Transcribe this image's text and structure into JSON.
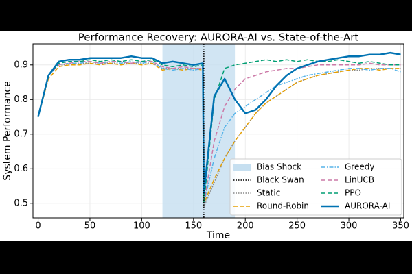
{
  "chart_data": {
    "type": "line",
    "title": "Performance Recovery: AURORA-AI vs. State-of-the-Art",
    "xlabel": "Time",
    "ylabel": "System Performance",
    "xlim": [
      -5,
      353
    ],
    "ylim": [
      0.458,
      0.961
    ],
    "xticks": [
      0,
      50,
      100,
      150,
      200,
      250,
      300,
      350
    ],
    "yticks": [
      0.5,
      0.6,
      0.7,
      0.8,
      0.9
    ],
    "grid": true,
    "legend": "lower right",
    "shade": {
      "name": "Bias Shock",
      "range": [
        120,
        190
      ],
      "color": "#c6dff0"
    },
    "vline": {
      "name": "Black Swan",
      "x": 160,
      "color": "#000000",
      "style": "dotted"
    },
    "x": [
      0,
      10,
      20,
      30,
      40,
      50,
      60,
      70,
      80,
      90,
      100,
      110,
      120,
      130,
      140,
      150,
      159,
      160,
      170,
      180,
      190,
      200,
      210,
      220,
      230,
      240,
      250,
      260,
      270,
      280,
      290,
      300,
      310,
      320,
      330,
      340,
      350
    ],
    "series": [
      {
        "name": "Static",
        "color": "#888888",
        "style": "dotted",
        "values": [
          0.75,
          0.87,
          0.9,
          0.9,
          0.905,
          0.905,
          0.905,
          0.905,
          0.905,
          0.905,
          0.905,
          0.905,
          0.89,
          0.89,
          0.89,
          0.89,
          0.89,
          0.49,
          0.56,
          0.63,
          0.68,
          0.72,
          0.76,
          0.79,
          0.81,
          0.83,
          0.85,
          0.86,
          0.87,
          0.875,
          0.88,
          0.885,
          0.885,
          0.89,
          0.89,
          0.89,
          0.89
        ]
      },
      {
        "name": "Round-Robin",
        "color": "#e69f00",
        "style": "dashed",
        "values": [
          0.75,
          0.86,
          0.895,
          0.9,
          0.9,
          0.905,
          0.9,
          0.905,
          0.9,
          0.905,
          0.9,
          0.905,
          0.885,
          0.89,
          0.885,
          0.89,
          0.885,
          0.5,
          0.57,
          0.63,
          0.68,
          0.72,
          0.76,
          0.79,
          0.81,
          0.83,
          0.85,
          0.86,
          0.87,
          0.875,
          0.88,
          0.885,
          0.89,
          0.89,
          0.885,
          0.89,
          0.89
        ]
      },
      {
        "name": "Greedy",
        "color": "#56b4e9",
        "style": "dashdot",
        "values": [
          0.75,
          0.87,
          0.9,
          0.905,
          0.905,
          0.91,
          0.905,
          0.91,
          0.905,
          0.91,
          0.905,
          0.91,
          0.89,
          0.885,
          0.89,
          0.885,
          0.89,
          0.5,
          0.63,
          0.72,
          0.76,
          0.78,
          0.8,
          0.82,
          0.84,
          0.85,
          0.86,
          0.87,
          0.875,
          0.88,
          0.885,
          0.89,
          0.89,
          0.885,
          0.89,
          0.89,
          0.88
        ]
      },
      {
        "name": "LinUCB",
        "color": "#cc79a7",
        "style": "dashed",
        "values": [
          0.75,
          0.87,
          0.9,
          0.905,
          0.91,
          0.91,
          0.905,
          0.91,
          0.91,
          0.905,
          0.91,
          0.91,
          0.895,
          0.89,
          0.895,
          0.89,
          0.89,
          0.5,
          0.68,
          0.78,
          0.83,
          0.86,
          0.87,
          0.88,
          0.885,
          0.89,
          0.89,
          0.895,
          0.9,
          0.9,
          0.9,
          0.9,
          0.9,
          0.905,
          0.9,
          0.9,
          0.9
        ]
      },
      {
        "name": "PPO",
        "color": "#009e73",
        "style": "dashed",
        "values": [
          0.75,
          0.87,
          0.905,
          0.91,
          0.91,
          0.915,
          0.91,
          0.915,
          0.91,
          0.915,
          0.91,
          0.915,
          0.9,
          0.895,
          0.9,
          0.895,
          0.9,
          0.5,
          0.8,
          0.89,
          0.9,
          0.905,
          0.91,
          0.915,
          0.91,
          0.915,
          0.91,
          0.915,
          0.91,
          0.91,
          0.915,
          0.91,
          0.905,
          0.91,
          0.905,
          0.9,
          0.9
        ]
      },
      {
        "name": "AURORA-AI",
        "color": "#0072b2",
        "style": "solid",
        "width": 2.5,
        "values": [
          0.75,
          0.87,
          0.91,
          0.915,
          0.915,
          0.92,
          0.92,
          0.92,
          0.92,
          0.925,
          0.92,
          0.92,
          0.905,
          0.91,
          0.905,
          0.9,
          0.905,
          0.53,
          0.81,
          0.86,
          0.8,
          0.76,
          0.77,
          0.8,
          0.84,
          0.87,
          0.89,
          0.9,
          0.91,
          0.915,
          0.92,
          0.925,
          0.925,
          0.93,
          0.93,
          0.935,
          0.93
        ]
      }
    ]
  }
}
